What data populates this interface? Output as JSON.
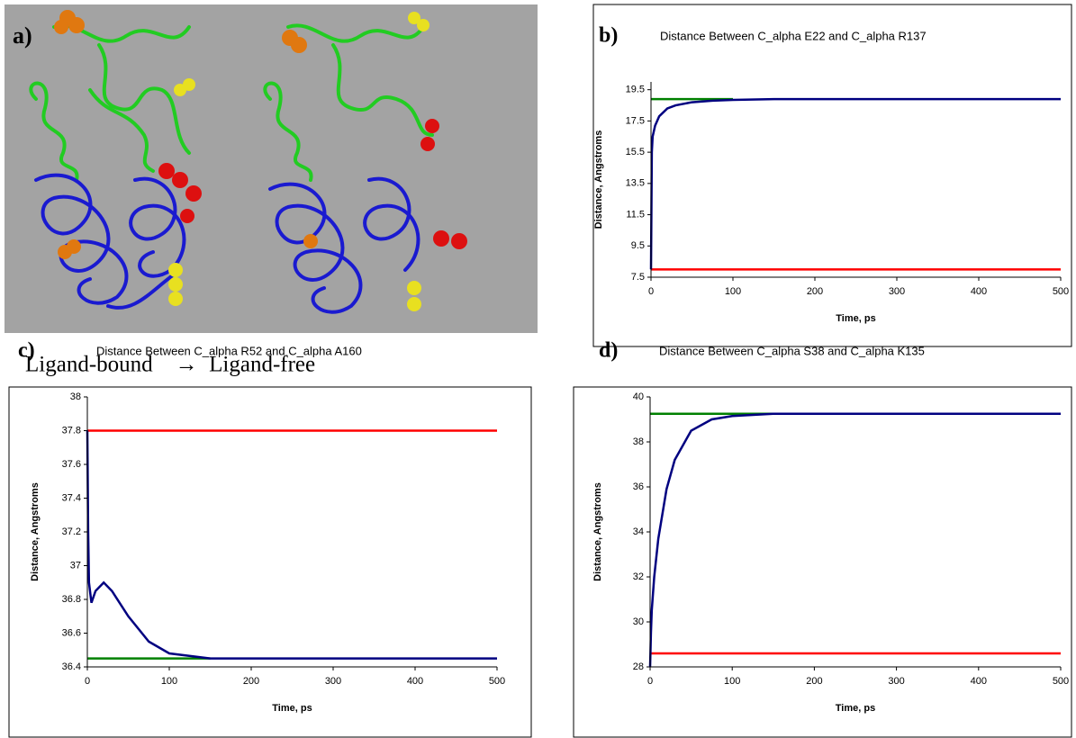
{
  "panel_a": {
    "label": "a)",
    "caption": "Ligand-bound    →  Ligand-free"
  },
  "chart_data": [
    {
      "type": "line",
      "panel_label": "b)",
      "title": "Distance Between C_alpha E22 and C_alpha R137",
      "xlabel": "Time, ps",
      "ylabel": "Distance, Angstroms",
      "x": [
        0,
        1,
        2,
        5,
        10,
        20,
        30,
        50,
        75,
        100,
        150,
        200,
        300,
        400,
        500
      ],
      "series": [
        {
          "color": "#008000",
          "values": [
            18.9,
            18.9,
            18.9,
            18.9,
            18.9,
            18.9,
            18.9,
            18.9,
            18.9,
            18.9,
            null,
            null,
            null,
            null,
            null
          ]
        },
        {
          "color": "#ff0000",
          "values": [
            8.0,
            8.0,
            8.0,
            8.0,
            8.0,
            8.0,
            8.0,
            8.0,
            8.0,
            8.0,
            8.0,
            8.0,
            8.0,
            8.0,
            8.0
          ]
        },
        {
          "color": "#000080",
          "values": [
            8.0,
            15.5,
            16.5,
            17.2,
            17.8,
            18.3,
            18.5,
            18.7,
            18.8,
            18.85,
            18.9,
            18.9,
            18.9,
            18.9,
            18.9
          ]
        }
      ],
      "xlim": [
        0,
        500
      ],
      "xticks": [
        0,
        100,
        200,
        300,
        400,
        500
      ],
      "ylim": [
        7.5,
        20
      ],
      "yticks": [
        7.5,
        9.5,
        11.5,
        13.5,
        15.5,
        17.5,
        19.5
      ]
    },
    {
      "type": "line",
      "panel_label": "c)",
      "title": "Distance Between C_alpha R52 and C_alpha A160",
      "xlabel": "Time, ps",
      "ylabel": "Distance, Angstroms",
      "x": [
        0,
        1,
        2,
        5,
        10,
        20,
        30,
        50,
        75,
        100,
        150,
        200,
        300,
        400,
        500
      ],
      "series": [
        {
          "color": "#008000",
          "values": [
            36.45,
            36.45,
            36.45,
            36.45,
            36.45,
            36.45,
            36.45,
            36.45,
            36.45,
            36.45,
            36.45,
            null,
            null,
            null,
            null
          ]
        },
        {
          "color": "#ff0000",
          "values": [
            37.8,
            37.8,
            37.8,
            37.8,
            37.8,
            37.8,
            37.8,
            37.8,
            37.8,
            37.8,
            37.8,
            37.8,
            37.8,
            37.8,
            37.8
          ]
        },
        {
          "color": "#000080",
          "values": [
            37.8,
            37.2,
            36.9,
            36.78,
            36.85,
            36.9,
            36.85,
            36.7,
            36.55,
            36.48,
            36.45,
            36.45,
            36.45,
            36.45,
            36.45
          ]
        }
      ],
      "xlim": [
        0,
        500
      ],
      "xticks": [
        0,
        100,
        200,
        300,
        400,
        500
      ],
      "ylim": [
        36.4,
        38
      ],
      "yticks": [
        36.4,
        36.6,
        36.8,
        37,
        37.2,
        37.4,
        37.6,
        37.8,
        38
      ]
    },
    {
      "type": "line",
      "panel_label": "d)",
      "title": "Distance Between C_alpha S38 and C_alpha K135",
      "xlabel": "Time, ps",
      "ylabel": "Distance, Angstroms",
      "x": [
        0,
        1,
        2,
        5,
        10,
        20,
        30,
        50,
        75,
        100,
        150,
        200,
        300,
        400,
        500
      ],
      "series": [
        {
          "color": "#008000",
          "values": [
            39.25,
            39.25,
            39.25,
            39.25,
            39.25,
            39.25,
            39.25,
            39.25,
            39.25,
            39.25,
            39.25,
            null,
            null,
            null,
            null
          ]
        },
        {
          "color": "#ff0000",
          "values": [
            28.6,
            28.6,
            28.6,
            28.6,
            28.6,
            28.6,
            28.6,
            28.6,
            28.6,
            28.6,
            28.6,
            28.6,
            28.6,
            28.6,
            28.6
          ]
        },
        {
          "color": "#000080",
          "values": [
            28.0,
            29.5,
            30.5,
            32.0,
            33.7,
            35.9,
            37.2,
            38.5,
            39.0,
            39.15,
            39.25,
            39.25,
            39.25,
            39.25,
            39.25
          ]
        }
      ],
      "xlim": [
        0,
        500
      ],
      "xticks": [
        0,
        100,
        200,
        300,
        400,
        500
      ],
      "ylim": [
        28,
        40
      ],
      "yticks": [
        28,
        30,
        32,
        34,
        36,
        38,
        40
      ]
    }
  ]
}
